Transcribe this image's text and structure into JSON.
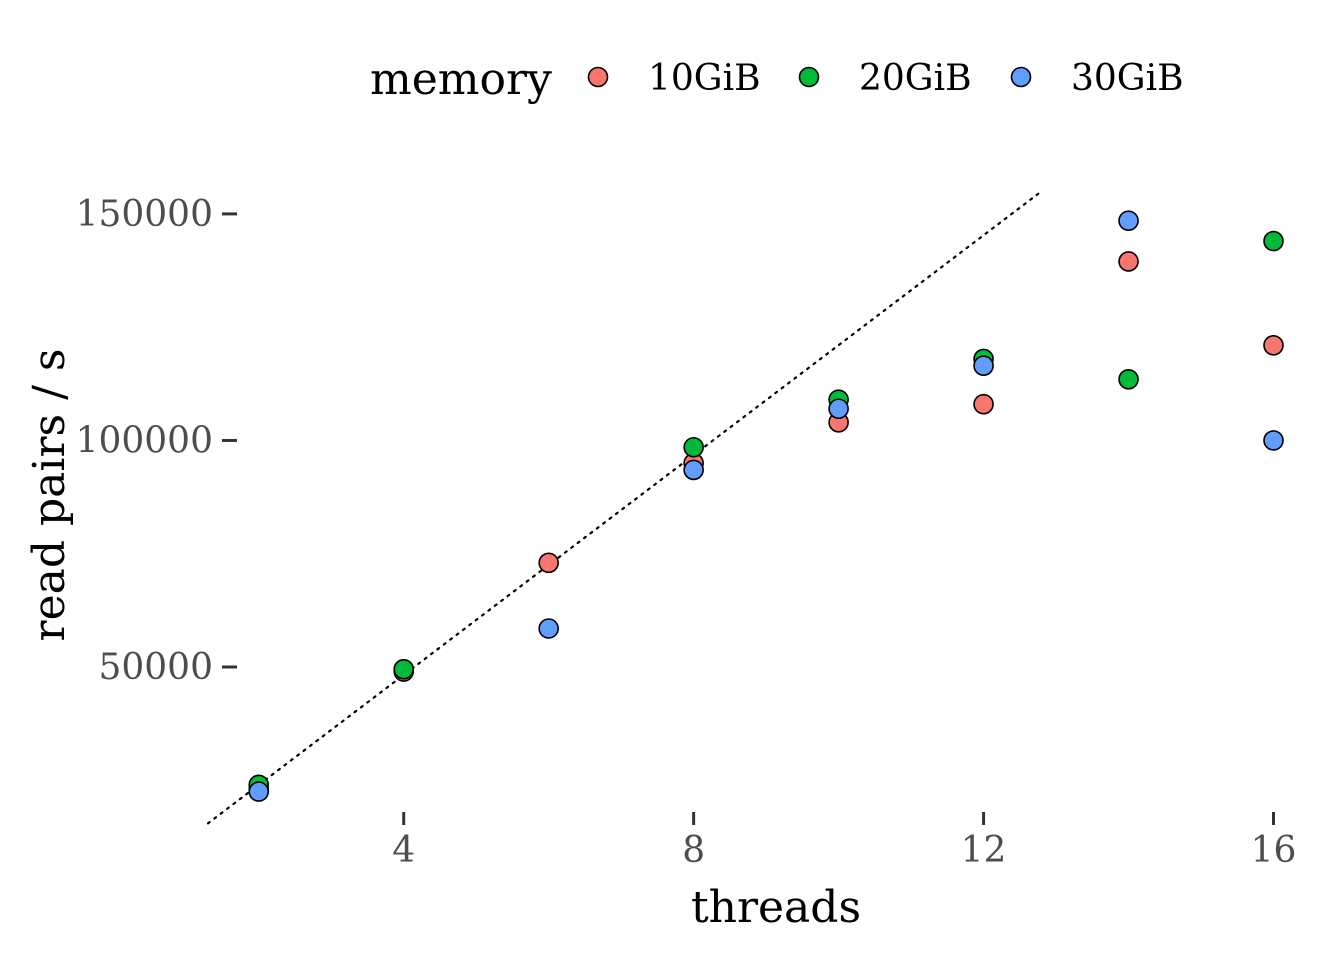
{
  "chart_data": {
    "type": "scatter",
    "xlabel": "threads",
    "ylabel": "read pairs / s",
    "xlim": [
      1.7,
      16.2
    ],
    "ylim": [
      18000,
      163000
    ],
    "x_ticks": [
      4,
      8,
      12,
      16
    ],
    "y_ticks": [
      50000,
      100000,
      150000
    ],
    "grid": false,
    "legend": {
      "title": "memory",
      "placement": "top"
    },
    "reference_line": {
      "style": "dotted",
      "color": "#000000",
      "points": [
        [
          1.3,
          15500
        ],
        [
          12.8,
          155000
        ]
      ]
    },
    "series": [
      {
        "name": "10GiB",
        "color": "#F8766D",
        "points": [
          [
            2,
            23000
          ],
          [
            4,
            49500
          ],
          [
            4,
            49000
          ],
          [
            6,
            73000
          ],
          [
            8,
            95000
          ],
          [
            10,
            104000
          ],
          [
            12,
            108000
          ],
          [
            14,
            139500
          ],
          [
            16,
            121000
          ]
        ]
      },
      {
        "name": "20GiB",
        "color": "#00BA38",
        "points": [
          [
            2,
            24000
          ],
          [
            4,
            49500
          ],
          [
            8,
            98500
          ],
          [
            10,
            109000
          ],
          [
            12,
            118000
          ],
          [
            14,
            113500
          ],
          [
            16,
            144000
          ]
        ]
      },
      {
        "name": "30GiB",
        "color": "#619CFF",
        "points": [
          [
            2,
            22500
          ],
          [
            6,
            58500
          ],
          [
            8,
            93500
          ],
          [
            10,
            107000
          ],
          [
            12,
            116500
          ],
          [
            14,
            148500
          ],
          [
            16,
            100000
          ]
        ]
      }
    ]
  }
}
